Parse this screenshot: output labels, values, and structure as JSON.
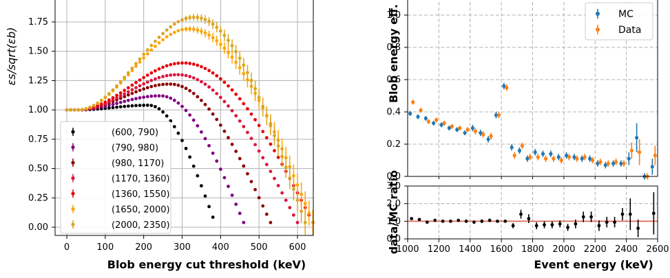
{
  "chart_data": [
    {
      "type": "scatter",
      "ylabel": "εs/sqrt(εb)",
      "xlabel": "Blob energy cut threshold (keV)",
      "xlim": [
        -25,
        660
      ],
      "ylim": [
        -0.05,
        1.97
      ],
      "xticks": [
        "0",
        "100",
        "200",
        "300",
        "400",
        "500",
        "600"
      ],
      "yticks": [
        "0.00",
        "0.25",
        "0.50",
        "0.75",
        "1.00",
        "1.25",
        "1.50",
        "1.75"
      ],
      "grid": true,
      "legend_position": "lower-left",
      "series": [
        {
          "name": "(600, 790)",
          "color": "#000000",
          "peak_x": 210,
          "peak_y": 1.04,
          "end_x": 385
        },
        {
          "name": "(790, 980)",
          "color": "#800080",
          "peak_x": 240,
          "peak_y": 1.12,
          "end_x": 460
        },
        {
          "name": "(980, 1170)",
          "color": "#8b0000",
          "peak_x": 265,
          "peak_y": 1.22,
          "end_x": 530
        },
        {
          "name": "(1170, 1360)",
          "color": "#dc143c",
          "peak_x": 285,
          "peak_y": 1.3,
          "end_x": 600
        },
        {
          "name": "(1360, 1550)",
          "color": "#e8000b",
          "peak_x": 300,
          "peak_y": 1.4,
          "end_x": 640
        },
        {
          "name": "(1650, 2000)",
          "color": "#ffa500",
          "peak_x": 315,
          "peak_y": 1.69,
          "end_x": 640
        },
        {
          "name": "(2000, 2350)",
          "color": "#daa520",
          "peak_x": 330,
          "peak_y": 1.79,
          "end_x": 620
        }
      ]
    },
    {
      "type": "scatter",
      "ylabel": "Blob energy eff.",
      "xlabel": "",
      "xlim": [
        1000,
        2600
      ],
      "ylim": [
        0,
        1.1
      ],
      "yticks": [
        "0.0",
        "0.2",
        "0.4",
        "0.6",
        "0.8",
        "1.0"
      ],
      "grid": true,
      "legend_position": "upper-right",
      "x": [
        1025,
        1075,
        1125,
        1175,
        1225,
        1275,
        1325,
        1375,
        1425,
        1475,
        1525,
        1575,
        1625,
        1675,
        1725,
        1775,
        1825,
        1875,
        1925,
        1975,
        2025,
        2075,
        2125,
        2175,
        2225,
        2275,
        2325,
        2375,
        2425,
        2475,
        2525,
        2575
      ],
      "series": [
        {
          "name": "MC",
          "color": "#1f77b4",
          "values": [
            0.39,
            0.37,
            0.36,
            0.33,
            0.32,
            0.3,
            0.29,
            0.27,
            0.3,
            0.27,
            0.23,
            0.38,
            0.56,
            0.18,
            0.16,
            0.11,
            0.15,
            0.14,
            0.14,
            0.12,
            0.13,
            0.12,
            0.11,
            0.11,
            0.08,
            0.07,
            0.08,
            0.08,
            0.11,
            0.24,
            0.0,
            0.06
          ],
          "errors": [
            0.015,
            0.015,
            0.015,
            0.015,
            0.015,
            0.015,
            0.015,
            0.015,
            0.02,
            0.02,
            0.02,
            0.02,
            0.02,
            0.02,
            0.02,
            0.02,
            0.02,
            0.02,
            0.02,
            0.02,
            0.02,
            0.02,
            0.02,
            0.02,
            0.02,
            0.02,
            0.02,
            0.02,
            0.04,
            0.09,
            0.02,
            0.05
          ]
        },
        {
          "name": "Data",
          "color": "#ff7f0e",
          "values": [
            0.46,
            0.41,
            0.34,
            0.35,
            0.33,
            0.31,
            0.3,
            0.29,
            0.28,
            0.26,
            0.25,
            0.38,
            0.55,
            0.13,
            0.19,
            0.12,
            0.12,
            0.11,
            0.11,
            0.1,
            0.12,
            0.11,
            0.12,
            0.1,
            0.09,
            0.08,
            0.09,
            0.08,
            0.16,
            0.15,
            0.0,
            0.13
          ],
          "errors": [
            0.015,
            0.015,
            0.015,
            0.015,
            0.015,
            0.015,
            0.015,
            0.015,
            0.02,
            0.02,
            0.02,
            0.02,
            0.02,
            0.02,
            0.02,
            0.02,
            0.02,
            0.02,
            0.02,
            0.02,
            0.02,
            0.02,
            0.02,
            0.02,
            0.02,
            0.02,
            0.02,
            0.02,
            0.05,
            0.08,
            0.02,
            0.06
          ]
        }
      ]
    },
    {
      "type": "scatter",
      "ylabel": "data/MC ratio",
      "xlabel": "Event energy (keV)",
      "xlim": [
        1000,
        2600
      ],
      "ylim": [
        0,
        3
      ],
      "xticks": [
        "1000",
        "1200",
        "1400",
        "1600",
        "1800",
        "2000",
        "2200",
        "2400",
        "2600"
      ],
      "yticks": [
        "0.0",
        "1.0",
        "2.0",
        "3.0"
      ],
      "grid": true,
      "reference_line": 1.0,
      "x": [
        1025,
        1075,
        1125,
        1175,
        1225,
        1275,
        1325,
        1375,
        1425,
        1475,
        1525,
        1575,
        1625,
        1675,
        1725,
        1775,
        1825,
        1875,
        1925,
        1975,
        2025,
        2075,
        2125,
        2175,
        2225,
        2275,
        2325,
        2375,
        2425,
        2475,
        2575
      ],
      "series": [
        {
          "name": "",
          "color": "#000000",
          "values": [
            1.15,
            1.1,
            0.95,
            1.05,
            1.0,
            1.0,
            1.05,
            1.0,
            0.95,
            1.0,
            1.05,
            1.0,
            1.0,
            0.75,
            1.4,
            1.15,
            0.75,
            0.8,
            0.8,
            0.85,
            0.65,
            0.85,
            1.25,
            1.25,
            0.75,
            0.95,
            0.95,
            1.4,
            1.4,
            0.6,
            1.45
          ],
          "errors": [
            0.05,
            0.05,
            0.08,
            0.08,
            0.08,
            0.08,
            0.08,
            0.08,
            0.1,
            0.1,
            0.1,
            0.08,
            0.06,
            0.15,
            0.25,
            0.25,
            0.2,
            0.2,
            0.2,
            0.2,
            0.2,
            0.25,
            0.3,
            0.3,
            0.3,
            0.3,
            0.3,
            0.35,
            0.9,
            0.5,
            1.2
          ]
        }
      ]
    }
  ]
}
